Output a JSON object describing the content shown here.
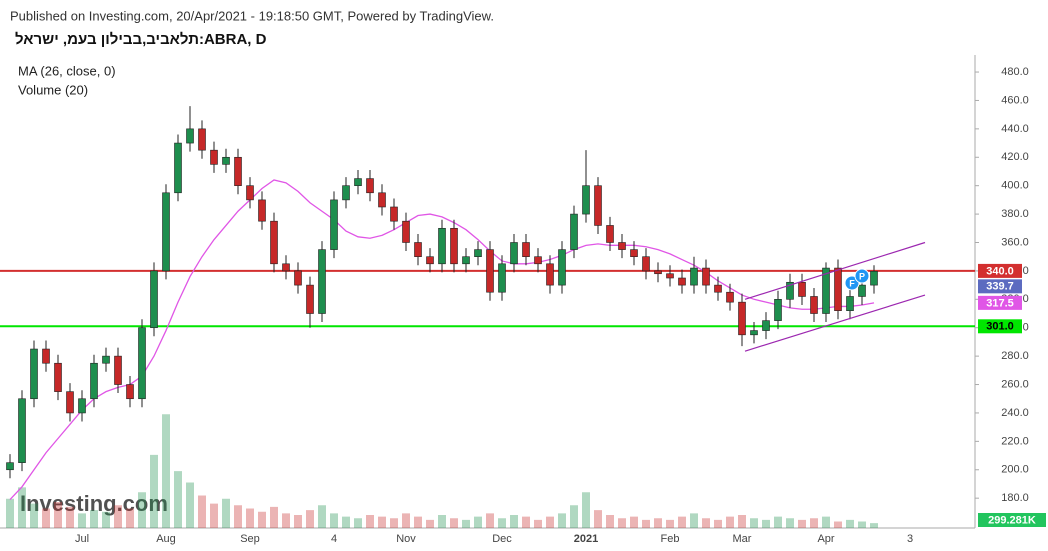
{
  "chart_data": {
    "type": "candlestick",
    "header": "Published on Investing.com, 20/Apr/2021 - 19:18:50 GMT, Powered by TradingView.",
    "symbol": "תלאביב,בבילון בעמ, ישראל:ABRA, D",
    "watermark": "Investing.com",
    "categories": [
      null,
      null,
      null,
      null,
      null,
      null,
      "Jul",
      null,
      null,
      null,
      null,
      null,
      null,
      "Aug",
      null,
      null,
      null,
      null,
      null,
      null,
      "Sep",
      null,
      null,
      null,
      null,
      null,
      null,
      "4",
      null,
      null,
      null,
      null,
      null,
      "Nov",
      null,
      null,
      null,
      null,
      null,
      null,
      null,
      "Dec",
      null,
      null,
      null,
      null,
      null,
      null,
      "2021",
      null,
      null,
      null,
      null,
      null,
      null,
      "Feb",
      null,
      null,
      null,
      null,
      null,
      "Mar",
      null,
      null,
      null,
      null,
      null,
      null,
      "Apr",
      null,
      null,
      null,
      null,
      null,
      null,
      "3",
      null
    ],
    "open": [
      200,
      205,
      250,
      285,
      275,
      255,
      240,
      250,
      275,
      280,
      260,
      250,
      300,
      340,
      395,
      430,
      440,
      425,
      415,
      420,
      400,
      390,
      375,
      345,
      340,
      330,
      310,
      355,
      390,
      400,
      405,
      395,
      385,
      375,
      360,
      350,
      345,
      370,
      345,
      350,
      355,
      325,
      345,
      360,
      350,
      345,
      330,
      355,
      380,
      400,
      372,
      360,
      355,
      350,
      340,
      338,
      335,
      330,
      342,
      330,
      325,
      318,
      295,
      298,
      305,
      320,
      332,
      322,
      310,
      342,
      312,
      322,
      330,
      null,
      null,
      null,
      null
    ],
    "high": [
      211,
      256,
      291,
      291,
      281,
      261,
      256,
      281,
      286,
      286,
      266,
      306,
      346,
      401,
      436,
      456,
      446,
      431,
      426,
      426,
      406,
      396,
      381,
      351,
      346,
      336,
      361,
      396,
      406,
      411,
      411,
      401,
      391,
      381,
      366,
      356,
      376,
      376,
      356,
      361,
      361,
      351,
      366,
      366,
      356,
      351,
      361,
      386,
      425,
      406,
      378,
      366,
      361,
      356,
      346,
      344,
      341,
      350,
      348,
      336,
      331,
      324,
      304,
      311,
      326,
      338,
      338,
      328,
      346,
      348,
      328,
      336,
      344,
      null,
      null,
      null,
      null
    ],
    "low": [
      194,
      199,
      244,
      269,
      249,
      234,
      234,
      244,
      269,
      254,
      244,
      244,
      294,
      334,
      389,
      424,
      419,
      409,
      409,
      394,
      384,
      369,
      339,
      334,
      324,
      300,
      304,
      349,
      384,
      394,
      389,
      379,
      369,
      354,
      344,
      339,
      339,
      339,
      339,
      344,
      319,
      319,
      339,
      344,
      339,
      324,
      324,
      349,
      374,
      366,
      354,
      349,
      344,
      334,
      332,
      329,
      324,
      324,
      324,
      319,
      312,
      287,
      289,
      292,
      299,
      314,
      316,
      304,
      304,
      306,
      306,
      316,
      324,
      null,
      null,
      null,
      null
    ],
    "close": [
      205,
      250,
      285,
      275,
      255,
      240,
      250,
      275,
      280,
      260,
      250,
      300,
      340,
      395,
      430,
      440,
      425,
      415,
      420,
      400,
      390,
      375,
      345,
      340,
      330,
      310,
      355,
      390,
      400,
      405,
      395,
      385,
      375,
      360,
      350,
      345,
      370,
      345,
      350,
      355,
      325,
      345,
      360,
      350,
      345,
      330,
      355,
      380,
      400,
      372,
      360,
      355,
      350,
      340,
      338,
      335,
      330,
      342,
      330,
      325,
      318,
      295,
      298,
      305,
      320,
      332,
      322,
      310,
      342,
      312,
      322,
      330,
      339.7,
      null,
      null,
      null,
      null
    ],
    "up_color": "#1e8e4e",
    "down_color": "#c62828",
    "last_color": "#5c6bc0",
    "ma": {
      "label": "MA (26, close, 0)",
      "color": "#e056e6",
      "values": [
        179,
        188,
        200,
        212,
        222,
        232,
        242,
        250,
        255,
        258,
        260,
        266,
        280,
        298,
        318,
        336,
        350,
        362,
        372,
        382,
        390,
        398,
        404,
        402,
        396,
        388,
        382,
        376,
        368,
        364,
        363,
        365,
        369,
        374,
        379,
        380,
        378,
        374,
        369,
        362,
        354,
        347,
        345,
        345,
        346,
        348,
        351,
        355,
        358,
        359,
        358,
        358,
        358,
        357,
        355,
        352,
        348,
        344,
        339,
        333,
        328,
        323,
        320,
        318,
        316,
        314,
        313,
        313,
        314,
        315,
        315,
        316,
        317.5,
        null,
        null,
        null,
        null
      ]
    },
    "volume": {
      "label": "Volume (20)",
      "ylim": [
        0,
        8000000
      ],
      "last_label": "299.281K",
      "label_color": "#22c55e",
      "values": [
        1800000,
        2500000,
        1500000,
        1200000,
        1600000,
        1300000,
        900000,
        1100000,
        1000000,
        1400000,
        1200000,
        2200000,
        4500000,
        7000000,
        3500000,
        2800000,
        2000000,
        1500000,
        1800000,
        1400000,
        1200000,
        1000000,
        1300000,
        900000,
        800000,
        1100000,
        1400000,
        900000,
        700000,
        600000,
        800000,
        700000,
        600000,
        900000,
        700000,
        500000,
        800000,
        600000,
        500000,
        700000,
        900000,
        600000,
        800000,
        700000,
        500000,
        700000,
        900000,
        1400000,
        2200000,
        1100000,
        800000,
        600000,
        700000,
        500000,
        600000,
        500000,
        700000,
        900000,
        600000,
        500000,
        700000,
        800000,
        600000,
        500000,
        700000,
        600000,
        500000,
        600000,
        700000,
        400000,
        500000,
        400000,
        299281,
        null,
        null,
        null,
        null
      ]
    },
    "levels": [
      {
        "value": 340,
        "label": "340.0",
        "color": "#d32f2f"
      },
      {
        "value": 301,
        "label": "301.0",
        "color": "#00e600"
      }
    ],
    "channel": {
      "color": "#9c27b0",
      "upper": [
        [
          61.25,
          320
        ],
        [
          76.25,
          360
        ]
      ],
      "lower": [
        [
          61.25,
          283.5
        ],
        [
          76.25,
          323
        ]
      ]
    },
    "markers": [
      "F",
      "P"
    ],
    "ylim": [
      159,
      492
    ],
    "yticks": [
      {
        "value": 180,
        "label": "180.0"
      },
      {
        "value": 200,
        "label": "200.0"
      },
      {
        "value": 220,
        "label": "220.0"
      },
      {
        "value": 240,
        "label": "240.0"
      },
      {
        "value": 260,
        "label": "260.0"
      },
      {
        "value": 280,
        "label": "280.0"
      },
      {
        "value": 300,
        "label": "300.0"
      },
      {
        "value": 320,
        "label": "320.0"
      },
      {
        "value": 340,
        "label": "340.0"
      },
      {
        "value": 360,
        "label": "360.0"
      },
      {
        "value": 380,
        "label": "380.0"
      },
      {
        "value": 400,
        "label": "400.0"
      },
      {
        "value": 420,
        "label": "420.0"
      },
      {
        "value": 440,
        "label": "440.0"
      },
      {
        "value": 460,
        "label": "460.0"
      },
      {
        "value": 480,
        "label": "480.0"
      }
    ]
  }
}
